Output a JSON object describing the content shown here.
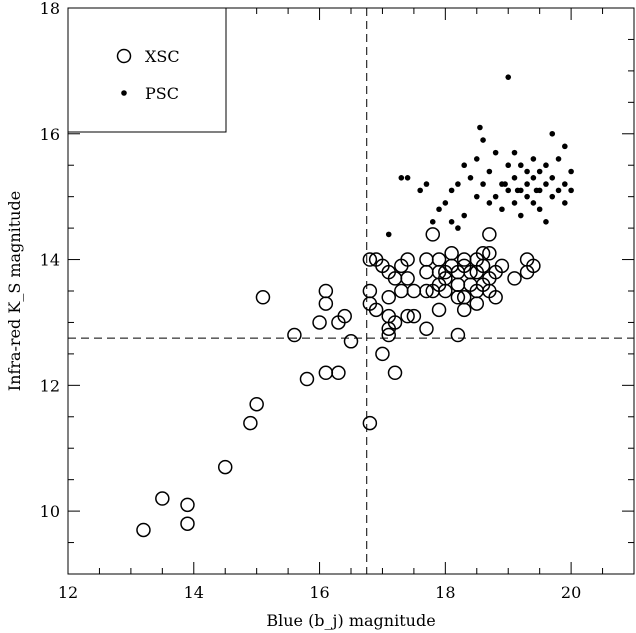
{
  "chart_data": {
    "type": "scatter",
    "xlabel": "Blue (b_j) magnitude",
    "ylabel": "Infra-red K_S magnitude",
    "xlim": [
      12,
      21
    ],
    "ylim": [
      9,
      18
    ],
    "xticks": [
      12,
      14,
      16,
      18,
      20
    ],
    "yticks": [
      10,
      12,
      14,
      16,
      18
    ],
    "xtick_labels": [
      "12",
      "14",
      "16",
      "18",
      "20"
    ],
    "ytick_labels": [
      "10",
      "12",
      "14",
      "16",
      "18"
    ],
    "xminor_step": 0.5,
    "yminor_step": 0.5,
    "grid": false,
    "legend_position": "top-left",
    "reference_lines": [
      {
        "orientation": "vertical",
        "value": 16.75,
        "style": "dashed"
      },
      {
        "orientation": "horizontal",
        "value": 12.75,
        "style": "dashed"
      }
    ],
    "series": [
      {
        "name": "XSC",
        "marker": "open-circle",
        "points": [
          [
            13.2,
            9.7
          ],
          [
            13.5,
            10.2
          ],
          [
            13.9,
            9.8
          ],
          [
            13.9,
            10.1
          ],
          [
            14.5,
            10.7
          ],
          [
            14.9,
            11.4
          ],
          [
            15.0,
            11.7
          ],
          [
            15.1,
            13.4
          ],
          [
            15.6,
            12.8
          ],
          [
            15.8,
            12.1
          ],
          [
            16.0,
            13.0
          ],
          [
            16.1,
            12.2
          ],
          [
            16.1,
            13.3
          ],
          [
            16.1,
            13.5
          ],
          [
            16.3,
            12.2
          ],
          [
            16.3,
            13.0
          ],
          [
            16.4,
            13.1
          ],
          [
            16.5,
            12.7
          ],
          [
            16.8,
            11.4
          ],
          [
            16.8,
            13.3
          ],
          [
            16.8,
            13.5
          ],
          [
            16.8,
            14.0
          ],
          [
            16.9,
            13.2
          ],
          [
            16.9,
            14.0
          ],
          [
            17.0,
            12.5
          ],
          [
            17.0,
            13.9
          ],
          [
            17.1,
            12.8
          ],
          [
            17.1,
            12.9
          ],
          [
            17.1,
            13.1
          ],
          [
            17.1,
            13.4
          ],
          [
            17.1,
            13.8
          ],
          [
            17.2,
            12.2
          ],
          [
            17.2,
            13.0
          ],
          [
            17.2,
            13.7
          ],
          [
            17.3,
            13.5
          ],
          [
            17.3,
            13.9
          ],
          [
            17.4,
            13.1
          ],
          [
            17.4,
            13.7
          ],
          [
            17.4,
            14.0
          ],
          [
            17.5,
            13.1
          ],
          [
            17.5,
            13.5
          ],
          [
            17.7,
            12.9
          ],
          [
            17.7,
            13.5
          ],
          [
            17.7,
            13.8
          ],
          [
            17.7,
            14.0
          ],
          [
            17.8,
            14.4
          ],
          [
            17.8,
            13.5
          ],
          [
            17.9,
            13.2
          ],
          [
            17.9,
            13.6
          ],
          [
            17.9,
            13.8
          ],
          [
            17.9,
            14.0
          ],
          [
            18.0,
            13.5
          ],
          [
            18.0,
            13.7
          ],
          [
            18.0,
            13.8
          ],
          [
            18.1,
            13.9
          ],
          [
            18.1,
            14.1
          ],
          [
            18.2,
            12.8
          ],
          [
            18.2,
            13.4
          ],
          [
            18.2,
            13.6
          ],
          [
            18.2,
            13.8
          ],
          [
            18.3,
            13.2
          ],
          [
            18.3,
            13.4
          ],
          [
            18.3,
            13.9
          ],
          [
            18.3,
            14.0
          ],
          [
            18.4,
            13.6
          ],
          [
            18.4,
            13.8
          ],
          [
            18.5,
            13.3
          ],
          [
            18.5,
            13.5
          ],
          [
            18.5,
            13.8
          ],
          [
            18.5,
            14.0
          ],
          [
            18.6,
            13.6
          ],
          [
            18.6,
            13.9
          ],
          [
            18.6,
            14.1
          ],
          [
            18.7,
            13.5
          ],
          [
            18.7,
            13.7
          ],
          [
            18.7,
            14.1
          ],
          [
            18.7,
            14.4
          ],
          [
            18.8,
            13.4
          ],
          [
            18.8,
            13.8
          ],
          [
            18.9,
            13.9
          ],
          [
            19.1,
            13.7
          ],
          [
            19.3,
            13.8
          ],
          [
            19.3,
            14.0
          ],
          [
            19.4,
            13.9
          ]
        ]
      },
      {
        "name": "PSC",
        "marker": "filled-dot",
        "points": [
          [
            17.1,
            14.4
          ],
          [
            17.3,
            15.3
          ],
          [
            17.4,
            15.3
          ],
          [
            17.6,
            15.1
          ],
          [
            17.7,
            15.2
          ],
          [
            17.8,
            14.6
          ],
          [
            17.9,
            14.8
          ],
          [
            18.0,
            14.9
          ],
          [
            18.1,
            15.1
          ],
          [
            18.1,
            14.6
          ],
          [
            18.2,
            14.5
          ],
          [
            18.2,
            15.2
          ],
          [
            18.3,
            14.7
          ],
          [
            18.3,
            15.5
          ],
          [
            18.4,
            15.3
          ],
          [
            18.5,
            15.0
          ],
          [
            18.5,
            15.6
          ],
          [
            18.6,
            15.9
          ],
          [
            18.6,
            15.2
          ],
          [
            18.7,
            14.9
          ],
          [
            18.7,
            15.4
          ],
          [
            18.8,
            15.0
          ],
          [
            18.8,
            15.7
          ],
          [
            18.9,
            15.2
          ],
          [
            18.9,
            14.8
          ],
          [
            19.0,
            15.1
          ],
          [
            19.0,
            15.5
          ],
          [
            19.0,
            16.9
          ],
          [
            19.1,
            15.3
          ],
          [
            19.1,
            14.9
          ],
          [
            19.1,
            15.7
          ],
          [
            19.2,
            15.1
          ],
          [
            19.2,
            15.5
          ],
          [
            19.2,
            14.7
          ],
          [
            19.3,
            15.2
          ],
          [
            19.3,
            15.0
          ],
          [
            19.3,
            15.4
          ],
          [
            19.4,
            15.3
          ],
          [
            19.4,
            14.9
          ],
          [
            19.4,
            15.6
          ],
          [
            19.5,
            15.1
          ],
          [
            19.5,
            15.4
          ],
          [
            19.5,
            14.8
          ],
          [
            19.6,
            15.2
          ],
          [
            19.6,
            14.6
          ],
          [
            19.6,
            15.5
          ],
          [
            19.7,
            15.0
          ],
          [
            19.7,
            15.3
          ],
          [
            19.7,
            16.0
          ],
          [
            19.8,
            15.1
          ],
          [
            19.8,
            15.6
          ],
          [
            19.9,
            15.2
          ],
          [
            19.9,
            15.8
          ],
          [
            19.9,
            14.9
          ],
          [
            20.0,
            15.1
          ],
          [
            20.0,
            15.4
          ],
          [
            18.55,
            16.1
          ],
          [
            18.95,
            15.2
          ],
          [
            19.15,
            15.1
          ],
          [
            19.45,
            15.1
          ]
        ]
      }
    ]
  }
}
